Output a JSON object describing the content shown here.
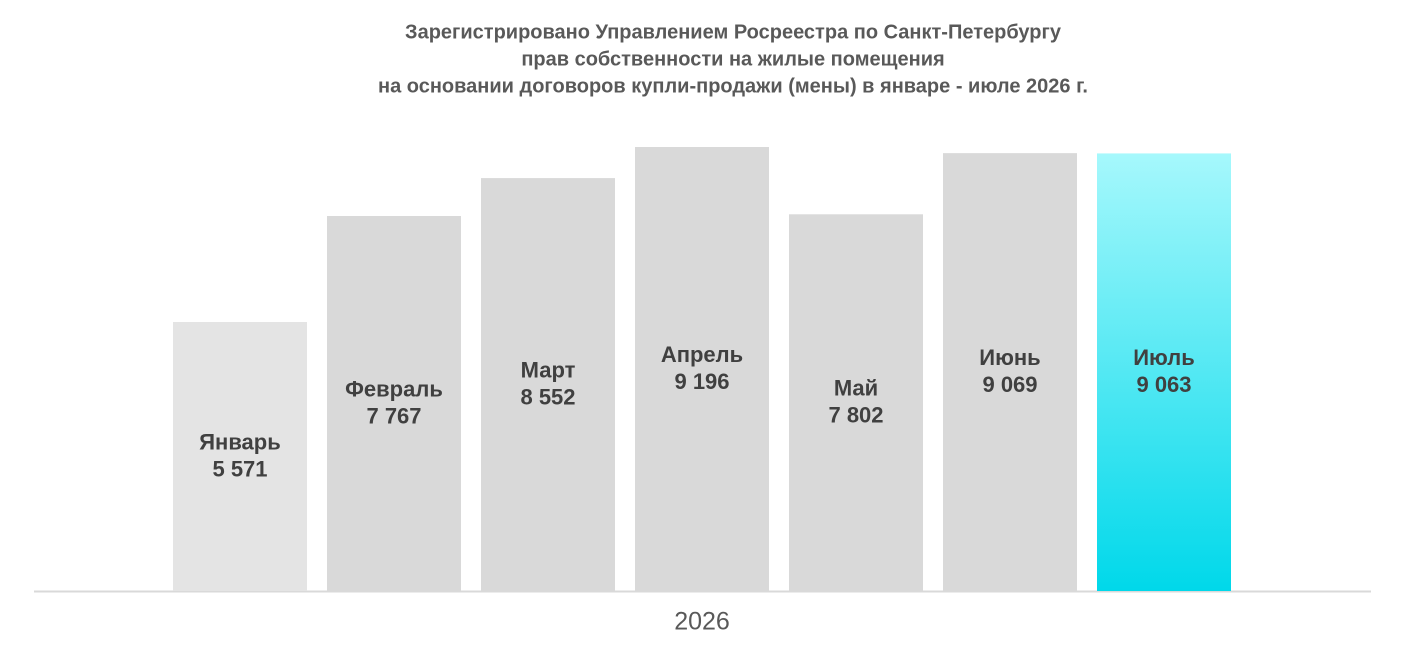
{
  "chart_data": {
    "type": "bar",
    "title": [
      "Зарегистрировано Управлением Росреестра по Санкт-Петербургу",
      "прав собственности на жилые помещения",
      "на основании договоров купли-продажи (мены) в январе - июле 2026 г."
    ],
    "x_label": "2026",
    "categories": [
      "Январь",
      "Февраль",
      "Март",
      "Апрель",
      "Май",
      "Июнь",
      "Июль"
    ],
    "values": [
      5571,
      7767,
      8552,
      9196,
      7802,
      9069,
      9063
    ],
    "value_labels": [
      "5 571",
      "7 767",
      "8 552",
      "9 196",
      "7 802",
      "9 069",
      "9 063"
    ],
    "colors": [
      "#e4e4e4",
      "#d9d9d9",
      "#d9d9d9",
      "#d9d9d9",
      "#d9d9d9",
      "#d9d9d9",
      "#00d8ea"
    ]
  }
}
